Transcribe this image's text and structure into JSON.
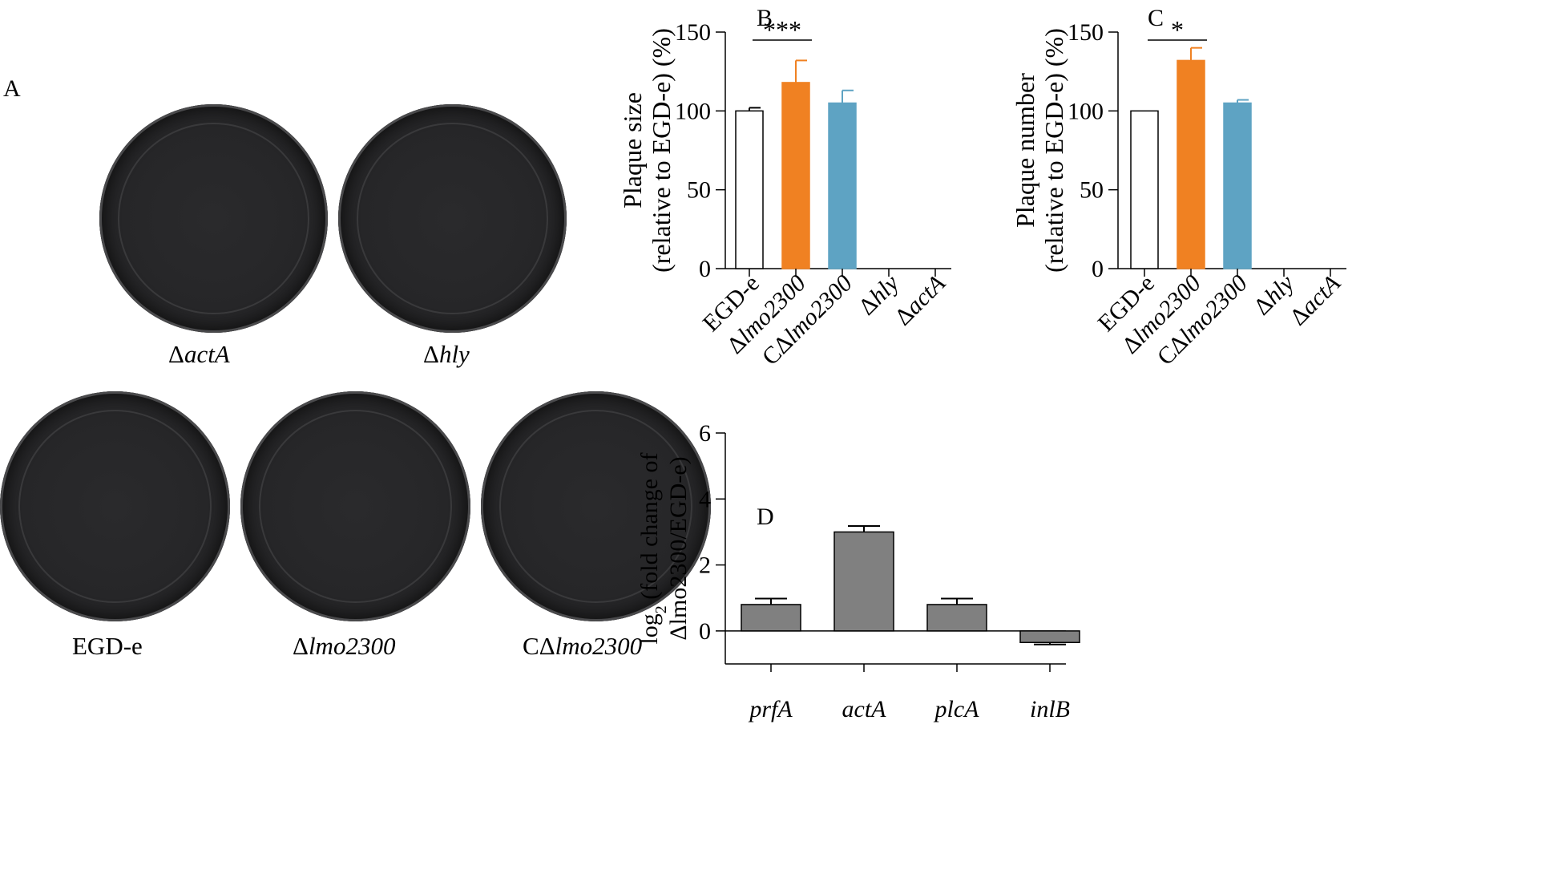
{
  "panels": {
    "A": "A",
    "B": "B",
    "C": "C",
    "D": "D"
  },
  "plates": [
    {
      "delta": "Δ",
      "prefix": "",
      "name": "actA"
    },
    {
      "delta": "Δ",
      "prefix": "",
      "name": "hly"
    },
    {
      "delta": "",
      "prefix": "EGD-e",
      "name": ""
    },
    {
      "delta": "Δ",
      "prefix": "",
      "name": "lmo2300"
    },
    {
      "delta": "Δ",
      "prefix": "C",
      "name": "lmo2300"
    }
  ],
  "colors": {
    "white_bar": "#ffffff",
    "orange_bar": "#f08122",
    "blue_bar": "#5ea3c3",
    "grey_bar": "#808080",
    "plate_dark": "#262628"
  },
  "chart_data": [
    {
      "id": "B",
      "type": "bar",
      "ylabel_line1": "Plaque size",
      "ylabel_line2": "(relative to EGD-e) (%)",
      "ylim": [
        0,
        150
      ],
      "yticks": [
        "0",
        "50",
        "100",
        "150"
      ],
      "categories": [
        {
          "prefix": "",
          "delta": "",
          "name": "EGD-e",
          "italic": false
        },
        {
          "prefix": "",
          "delta": "Δ",
          "name": "lmo2300",
          "italic": true
        },
        {
          "prefix": "C",
          "delta": "Δ",
          "name": "lmo2300",
          "italic": true
        },
        {
          "prefix": "",
          "delta": "Δ",
          "name": "hly",
          "italic": true
        },
        {
          "prefix": "",
          "delta": "Δ",
          "name": "actA",
          "italic": true
        }
      ],
      "values": [
        100,
        118,
        105,
        0,
        0
      ],
      "errors": [
        2,
        14,
        8,
        0,
        0
      ],
      "bar_colors": [
        "#ffffff",
        "#f08122",
        "#5ea3c3",
        "#ffffff",
        "#ffffff"
      ],
      "significance": {
        "from": 0,
        "to": 1,
        "label": "***"
      }
    },
    {
      "id": "C",
      "type": "bar",
      "ylabel_line1": "Plaque number",
      "ylabel_line2": "(relative to EGD-e) (%)",
      "ylim": [
        0,
        150
      ],
      "yticks": [
        "0",
        "50",
        "100",
        "150"
      ],
      "categories": [
        {
          "prefix": "",
          "delta": "",
          "name": "EGD-e",
          "italic": false
        },
        {
          "prefix": "",
          "delta": "Δ",
          "name": "lmo2300",
          "italic": true
        },
        {
          "prefix": "C",
          "delta": "Δ",
          "name": "lmo2300",
          "italic": true
        },
        {
          "prefix": "",
          "delta": "Δ",
          "name": "hly",
          "italic": true
        },
        {
          "prefix": "",
          "delta": "Δ",
          "name": "actA",
          "italic": true
        }
      ],
      "values": [
        100,
        132,
        105,
        0,
        0
      ],
      "errors": [
        0,
        8,
        2,
        0,
        0
      ],
      "bar_colors": [
        "#ffffff",
        "#f08122",
        "#5ea3c3",
        "#ffffff",
        "#ffffff"
      ],
      "significance": {
        "from": 0,
        "to": 1,
        "label": "*"
      }
    },
    {
      "id": "D",
      "type": "bar",
      "ylabel_line1_pre": "log",
      "ylabel_line1_sub": "2",
      "ylabel_line1_post": " (fold change of",
      "ylabel_line2": "Δlmo2300/EGD-e)",
      "ylim": [
        -1,
        6
      ],
      "yticks": [
        "0",
        "2",
        "4",
        "6"
      ],
      "categories": [
        {
          "prefix": "",
          "delta": "",
          "name": "prfA",
          "italic": true
        },
        {
          "prefix": "",
          "delta": "",
          "name": "actA",
          "italic": true
        },
        {
          "prefix": "",
          "delta": "",
          "name": "plcA",
          "italic": true
        },
        {
          "prefix": "",
          "delta": "",
          "name": "inlB",
          "italic": true
        }
      ],
      "values": [
        0.8,
        3.0,
        0.8,
        -0.35
      ],
      "errors": [
        0.18,
        0.18,
        0.18,
        0.06
      ],
      "bar_colors": [
        "#808080",
        "#808080",
        "#808080",
        "#808080"
      ]
    }
  ]
}
